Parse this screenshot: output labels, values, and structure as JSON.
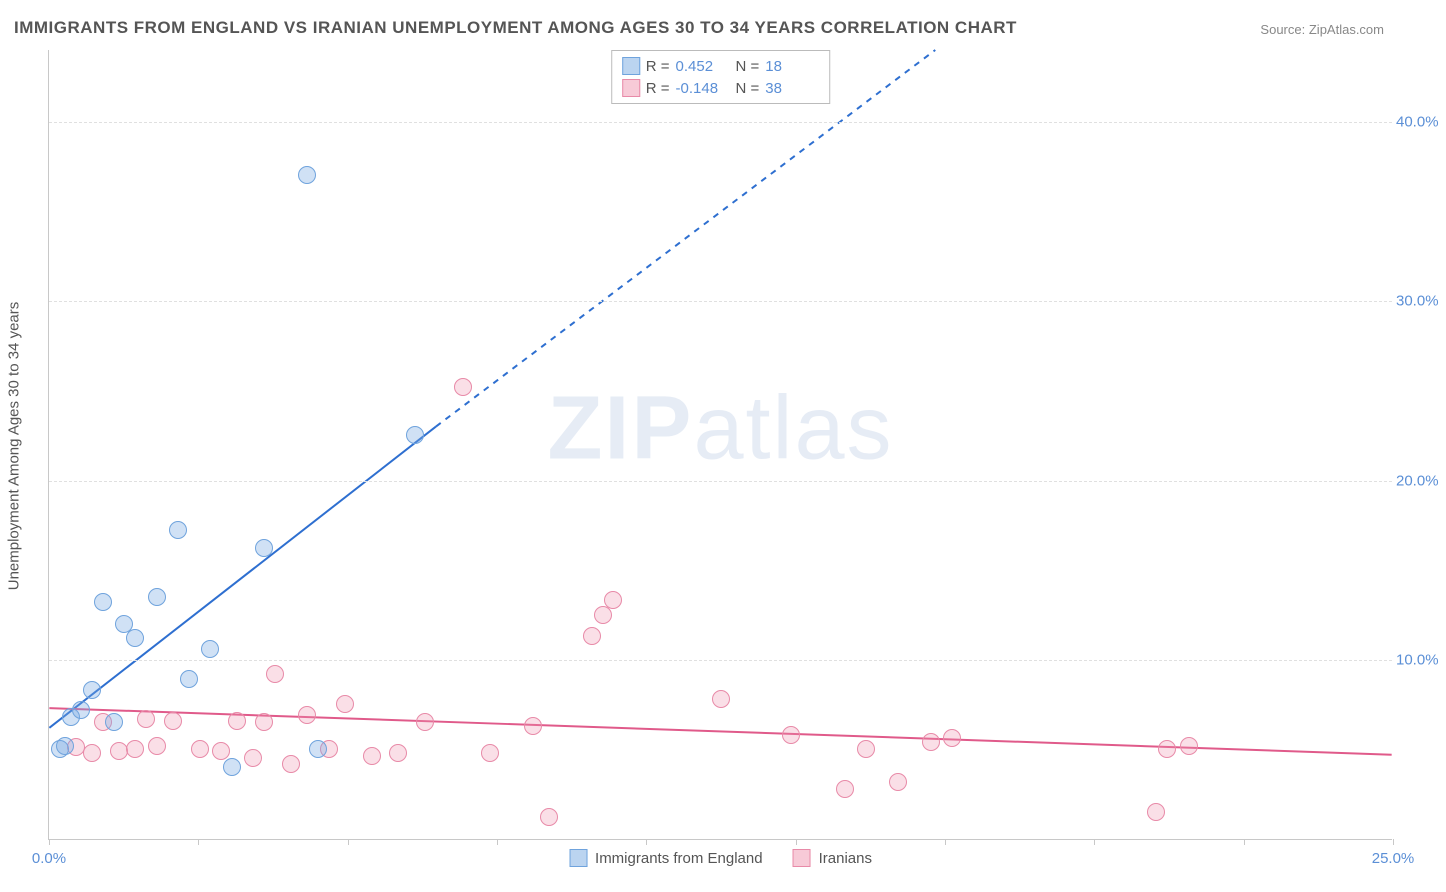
{
  "title": "IMMIGRANTS FROM ENGLAND VS IRANIAN UNEMPLOYMENT AMONG AGES 30 TO 34 YEARS CORRELATION CHART",
  "source_label": "Source:",
  "source_name": "ZipAtlas.com",
  "y_axis_label": "Unemployment Among Ages 30 to 34 years",
  "watermark_bold": "ZIP",
  "watermark_light": "atlas",
  "chart": {
    "type": "scatter",
    "xlim": [
      0,
      25
    ],
    "ylim": [
      0,
      44
    ],
    "x_ticks": [
      0,
      2.78,
      5.56,
      8.33,
      11.11,
      13.89,
      16.67,
      19.44,
      22.22,
      25
    ],
    "x_tick_labels": {
      "0": "0.0%",
      "25": "25.0%"
    },
    "y_gridlines": [
      10,
      20,
      30,
      40
    ],
    "y_tick_labels": {
      "10": "10.0%",
      "20": "20.0%",
      "30": "30.0%",
      "40": "40.0%"
    },
    "background_color": "#ffffff",
    "grid_color": "#e0e0e0",
    "axis_color": "#c8c8c8",
    "label_color": "#5b8fd6",
    "point_radius": 9
  },
  "series": {
    "blue": {
      "label": "Immigrants from England",
      "color_fill": "rgba(120,170,225,0.35)",
      "color_stroke": "#6fa3dd",
      "R": "0.452",
      "N": "18",
      "trend": {
        "x1": 0,
        "y1": 6.2,
        "x2": 7.2,
        "y2": 23.0,
        "x2_ext": 16.5,
        "y2_ext": 44.0,
        "stroke": "#2e6fd0",
        "width": 2
      },
      "points": [
        [
          0.2,
          5.0
        ],
        [
          0.3,
          5.2
        ],
        [
          0.4,
          6.8
        ],
        [
          0.6,
          7.2
        ],
        [
          0.8,
          8.3
        ],
        [
          1.0,
          13.2
        ],
        [
          1.2,
          6.5
        ],
        [
          1.4,
          12.0
        ],
        [
          1.6,
          11.2
        ],
        [
          2.0,
          13.5
        ],
        [
          2.4,
          17.2
        ],
        [
          2.6,
          8.9
        ],
        [
          3.0,
          10.6
        ],
        [
          3.4,
          4.0
        ],
        [
          4.0,
          16.2
        ],
        [
          4.8,
          37.0
        ],
        [
          5.0,
          5.0
        ],
        [
          6.8,
          22.5
        ]
      ]
    },
    "pink": {
      "label": "Iranians",
      "color_fill": "rgba(240,150,175,0.30)",
      "color_stroke": "#e88aa8",
      "R": "-0.148",
      "N": "38",
      "trend": {
        "x1": 0,
        "y1": 7.3,
        "x2": 25,
        "y2": 4.7,
        "stroke": "#e05a8a",
        "width": 2
      },
      "points": [
        [
          0.5,
          5.1
        ],
        [
          0.8,
          4.8
        ],
        [
          1.0,
          6.5
        ],
        [
          1.3,
          4.9
        ],
        [
          1.6,
          5.0
        ],
        [
          1.8,
          6.7
        ],
        [
          2.0,
          5.2
        ],
        [
          2.3,
          6.6
        ],
        [
          2.8,
          5.0
        ],
        [
          3.2,
          4.9
        ],
        [
          3.5,
          6.6
        ],
        [
          3.8,
          4.5
        ],
        [
          4.0,
          6.5
        ],
        [
          4.2,
          9.2
        ],
        [
          4.5,
          4.2
        ],
        [
          4.8,
          6.9
        ],
        [
          5.2,
          5.0
        ],
        [
          5.5,
          7.5
        ],
        [
          6.0,
          4.6
        ],
        [
          6.5,
          4.8
        ],
        [
          7.0,
          6.5
        ],
        [
          7.7,
          25.2
        ],
        [
          8.2,
          4.8
        ],
        [
          9.0,
          6.3
        ],
        [
          9.3,
          1.2
        ],
        [
          10.1,
          11.3
        ],
        [
          10.3,
          12.5
        ],
        [
          10.5,
          13.3
        ],
        [
          12.5,
          7.8
        ],
        [
          13.8,
          5.8
        ],
        [
          14.8,
          2.8
        ],
        [
          15.2,
          5.0
        ],
        [
          15.8,
          3.2
        ],
        [
          16.4,
          5.4
        ],
        [
          16.8,
          5.6
        ],
        [
          20.6,
          1.5
        ],
        [
          20.8,
          5.0
        ],
        [
          21.2,
          5.2
        ]
      ]
    }
  },
  "legend": {
    "stat_labels": {
      "R": "R  =",
      "N": "N  ="
    }
  }
}
